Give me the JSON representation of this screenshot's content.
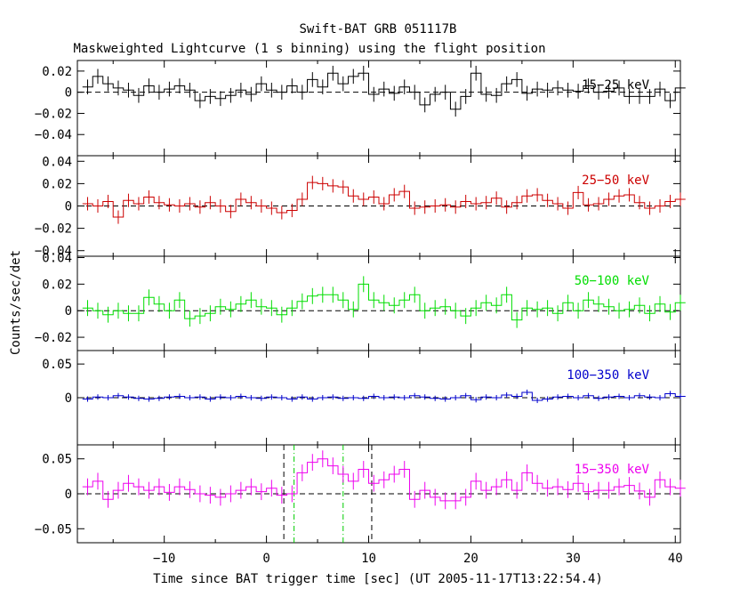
{
  "chart_data": {
    "type": "line",
    "title": "Swift-BAT GRB 051117B",
    "subtitle": "Maskweighted Lightcurve (1 s binning) using the flight position",
    "xlabel": "Time since BAT trigger time [sec] (UT 2005-11-17T13:22:54.4)",
    "ylabel": "Counts/sec/det",
    "xlim": [
      -18.5,
      40.5
    ],
    "xticks": [
      -10,
      0,
      10,
      20,
      30,
      40
    ],
    "x_start": -18,
    "vlines": {
      "black_dashed": [
        1.7,
        10.3
      ],
      "green_dashdot": [
        2.7,
        7.5
      ]
    },
    "panels": [
      {
        "name": "15-25 keV",
        "color": "#000000",
        "ylim": [
          -0.06,
          0.03
        ],
        "yticks": [
          0.02,
          0,
          -0.02,
          -0.04
        ],
        "yticklabels": [
          "0.02",
          "0",
          "−0.02",
          "−0.04"
        ],
        "values": [
          0.005,
          0.015,
          0.008,
          0.004,
          0.002,
          -0.003,
          0.006,
          0.0,
          0.003,
          0.006,
          0.002,
          -0.008,
          -0.004,
          -0.006,
          -0.003,
          0.002,
          -0.002,
          0.008,
          0.002,
          0.0,
          0.006,
          0.0,
          0.012,
          0.005,
          0.018,
          0.008,
          0.015,
          0.018,
          -0.002,
          0.003,
          -0.001,
          0.005,
          0.0,
          -0.012,
          -0.002,
          0.0,
          -0.016,
          -0.004,
          0.018,
          -0.002,
          -0.003,
          0.008,
          0.012,
          -0.001,
          0.003,
          0.002,
          0.004,
          0.002,
          0.001,
          0.006,
          0.0,
          0.001,
          0.004,
          -0.004,
          -0.004,
          -0.004,
          0.003,
          -0.008,
          0.004
        ],
        "errors": [
          0.007,
          0.007,
          0.007,
          0.007,
          0.007,
          0.007,
          0.007,
          0.007,
          0.007,
          0.007,
          0.007,
          0.007,
          0.007,
          0.007,
          0.007,
          0.007,
          0.007,
          0.007,
          0.007,
          0.007,
          0.007,
          0.007,
          0.007,
          0.007,
          0.007,
          0.007,
          0.007,
          0.007,
          0.007,
          0.007,
          0.007,
          0.007,
          0.007,
          0.007,
          0.007,
          0.007,
          0.007,
          0.007,
          0.007,
          0.007,
          0.007,
          0.007,
          0.007,
          0.007,
          0.007,
          0.007,
          0.007,
          0.007,
          0.007,
          0.007,
          0.007,
          0.007,
          0.007,
          0.007,
          0.007,
          0.007,
          0.007,
          0.007,
          0.007
        ]
      },
      {
        "name": "25-50 keV",
        "color": "#cc0000",
        "ylim": [
          -0.045,
          0.045
        ],
        "yticks": [
          0.04,
          0.02,
          0,
          -0.02,
          -0.04
        ],
        "yticklabels": [
          "0.04",
          "0.02",
          "0",
          "−0.02",
          "−0.04"
        ],
        "values": [
          0.002,
          0.0,
          0.004,
          -0.01,
          0.005,
          0.002,
          0.008,
          0.003,
          0.001,
          0.0,
          0.002,
          -0.001,
          0.003,
          0.0,
          -0.005,
          0.006,
          0.003,
          0.0,
          -0.002,
          -0.006,
          -0.004,
          0.006,
          0.021,
          0.02,
          0.018,
          0.017,
          0.009,
          0.006,
          0.008,
          0.002,
          0.01,
          0.013,
          -0.002,
          -0.001,
          0.0,
          0.001,
          -0.001,
          0.004,
          0.002,
          0.003,
          0.007,
          -0.001,
          0.003,
          0.009,
          0.01,
          0.005,
          0.002,
          -0.002,
          0.012,
          0.001,
          0.002,
          0.006,
          0.009,
          0.01,
          0.003,
          -0.002,
          0.0,
          0.004,
          0.006
        ],
        "errors": [
          0.006,
          0.006,
          0.006,
          0.006,
          0.006,
          0.006,
          0.006,
          0.006,
          0.006,
          0.006,
          0.006,
          0.006,
          0.006,
          0.006,
          0.006,
          0.006,
          0.006,
          0.006,
          0.006,
          0.006,
          0.006,
          0.006,
          0.006,
          0.006,
          0.006,
          0.006,
          0.006,
          0.006,
          0.006,
          0.006,
          0.006,
          0.006,
          0.006,
          0.006,
          0.006,
          0.006,
          0.006,
          0.006,
          0.006,
          0.006,
          0.006,
          0.006,
          0.006,
          0.006,
          0.006,
          0.006,
          0.006,
          0.006,
          0.006,
          0.006,
          0.006,
          0.006,
          0.006,
          0.006,
          0.006,
          0.006,
          0.006,
          0.006,
          0.006
        ]
      },
      {
        "name": "50-100 keV",
        "color": "#00dd00",
        "ylim": [
          -0.03,
          0.041
        ],
        "yticks": [
          0.04,
          0.02,
          0,
          -0.02
        ],
        "yticklabels": [
          "0.04",
          "0.02",
          "0",
          "−0.02"
        ],
        "values": [
          0.002,
          0.0,
          -0.003,
          0.0,
          -0.002,
          -0.002,
          0.01,
          0.005,
          0.0,
          0.008,
          -0.006,
          -0.004,
          -0.002,
          0.003,
          0.001,
          0.005,
          0.008,
          0.003,
          0.002,
          -0.003,
          0.002,
          0.007,
          0.011,
          0.012,
          0.012,
          0.008,
          0.001,
          0.02,
          0.008,
          0.006,
          0.004,
          0.008,
          0.012,
          0.0,
          0.002,
          0.003,
          0.0,
          -0.004,
          0.002,
          0.006,
          0.004,
          0.012,
          -0.007,
          0.002,
          0.001,
          0.002,
          -0.002,
          0.006,
          0.0,
          0.008,
          0.005,
          0.003,
          0.0,
          0.001,
          0.004,
          -0.002,
          0.005,
          -0.001,
          0.006
        ],
        "errors": [
          0.006,
          0.006,
          0.006,
          0.006,
          0.006,
          0.006,
          0.006,
          0.006,
          0.006,
          0.006,
          0.006,
          0.006,
          0.006,
          0.006,
          0.006,
          0.006,
          0.006,
          0.006,
          0.006,
          0.006,
          0.006,
          0.006,
          0.006,
          0.006,
          0.006,
          0.006,
          0.006,
          0.006,
          0.006,
          0.006,
          0.006,
          0.006,
          0.006,
          0.006,
          0.006,
          0.006,
          0.006,
          0.006,
          0.006,
          0.006,
          0.006,
          0.006,
          0.006,
          0.006,
          0.006,
          0.006,
          0.006,
          0.006,
          0.006,
          0.006,
          0.006,
          0.006,
          0.006,
          0.006,
          0.006,
          0.006,
          0.006,
          0.006,
          0.006
        ]
      },
      {
        "name": "100-350 keV",
        "color": "#0000cc",
        "ylim": [
          -0.07,
          0.07
        ],
        "yticks": [
          0.05,
          0
        ],
        "yticklabels": [
          "0.05",
          "0"
        ],
        "values": [
          -0.002,
          0.001,
          0.0,
          0.003,
          0.001,
          -0.001,
          -0.002,
          -0.001,
          0.001,
          0.002,
          0.0,
          0.001,
          -0.002,
          0.001,
          0.0,
          0.002,
          0.0,
          -0.001,
          0.001,
          0.0,
          -0.002,
          0.001,
          -0.002,
          0.0,
          0.001,
          -0.001,
          0.0,
          -0.001,
          0.002,
          0.0,
          0.001,
          0.0,
          0.003,
          0.001,
          -0.001,
          -0.002,
          0.0,
          0.003,
          -0.003,
          0.001,
          0.0,
          0.004,
          0.002,
          0.008,
          -0.004,
          -0.002,
          0.001,
          0.002,
          0.0,
          0.003,
          -0.001,
          0.001,
          0.002,
          0.0,
          0.003,
          0.001,
          0.0,
          0.006,
          0.002
        ],
        "errors": [
          0.004,
          0.004,
          0.004,
          0.004,
          0.004,
          0.004,
          0.004,
          0.004,
          0.004,
          0.004,
          0.004,
          0.004,
          0.004,
          0.004,
          0.004,
          0.004,
          0.004,
          0.004,
          0.004,
          0.004,
          0.004,
          0.004,
          0.004,
          0.004,
          0.004,
          0.004,
          0.004,
          0.004,
          0.004,
          0.004,
          0.004,
          0.004,
          0.004,
          0.004,
          0.004,
          0.004,
          0.004,
          0.004,
          0.004,
          0.004,
          0.004,
          0.004,
          0.004,
          0.004,
          0.004,
          0.004,
          0.004,
          0.004,
          0.004,
          0.004,
          0.004,
          0.004,
          0.004,
          0.004,
          0.004,
          0.004,
          0.004,
          0.004,
          0.004
        ]
      },
      {
        "name": "15-350 keV",
        "color": "#ee00ee",
        "ylim": [
          -0.07,
          0.07
        ],
        "yticks": [
          0.05,
          0,
          -0.05
        ],
        "yticklabels": [
          "0.05",
          "0",
          "−0.05"
        ],
        "values": [
          0.01,
          0.018,
          -0.008,
          0.005,
          0.015,
          0.01,
          0.005,
          0.01,
          0.002,
          0.01,
          0.006,
          0.0,
          -0.002,
          -0.005,
          0.0,
          0.005,
          0.01,
          0.003,
          0.008,
          -0.002,
          0.0,
          0.03,
          0.045,
          0.05,
          0.04,
          0.028,
          0.018,
          0.035,
          0.015,
          0.02,
          0.028,
          0.035,
          -0.008,
          0.005,
          -0.005,
          -0.01,
          -0.01,
          -0.005,
          0.018,
          0.005,
          0.01,
          0.02,
          0.005,
          0.03,
          0.015,
          0.008,
          0.01,
          0.006,
          0.015,
          0.003,
          0.005,
          0.005,
          0.01,
          0.012,
          0.004,
          -0.005,
          0.02,
          0.01,
          0.008
        ],
        "errors": [
          0.012,
          0.012,
          0.012,
          0.012,
          0.012,
          0.012,
          0.012,
          0.012,
          0.012,
          0.012,
          0.012,
          0.012,
          0.012,
          0.012,
          0.012,
          0.012,
          0.012,
          0.012,
          0.012,
          0.012,
          0.012,
          0.012,
          0.012,
          0.012,
          0.012,
          0.012,
          0.012,
          0.012,
          0.012,
          0.012,
          0.012,
          0.012,
          0.012,
          0.012,
          0.012,
          0.012,
          0.012,
          0.012,
          0.012,
          0.012,
          0.012,
          0.012,
          0.012,
          0.012,
          0.012,
          0.012,
          0.012,
          0.012,
          0.012,
          0.012,
          0.012,
          0.012,
          0.012,
          0.012,
          0.012,
          0.012,
          0.012,
          0.012,
          0.012
        ]
      }
    ]
  }
}
